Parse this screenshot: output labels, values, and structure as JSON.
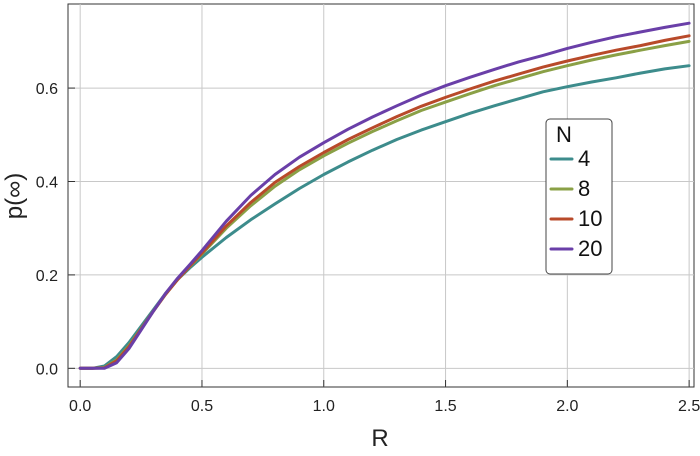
{
  "chart_data": {
    "type": "line",
    "xlabel": "R",
    "ylabel": "p(∞)",
    "xlim": [
      -0.05,
      2.52
    ],
    "ylim": [
      -0.04,
      0.78
    ],
    "xticks": [
      0.0,
      0.5,
      1.0,
      1.5,
      2.0,
      2.5
    ],
    "xtick_labels": [
      "0.0",
      "0.5",
      "1.0",
      "1.5",
      "2.0",
      "2.5"
    ],
    "yticks": [
      0.0,
      0.2,
      0.4,
      0.6
    ],
    "ytick_labels": [
      "0.0",
      "0.2",
      "0.4",
      "0.6"
    ],
    "grid": true,
    "legend": {
      "title": "N",
      "position": "right"
    },
    "x": [
      0.0,
      0.05,
      0.1,
      0.15,
      0.2,
      0.25,
      0.3,
      0.35,
      0.4,
      0.45,
      0.5,
      0.6,
      0.7,
      0.8,
      0.9,
      1.0,
      1.1,
      1.2,
      1.3,
      1.4,
      1.5,
      1.6,
      1.7,
      1.8,
      1.9,
      2.0,
      2.1,
      2.2,
      2.3,
      2.4,
      2.5
    ],
    "series": [
      {
        "name": "4",
        "color": "#3d8c8c",
        "values": [
          0.0,
          0.0,
          0.005,
          0.025,
          0.055,
          0.09,
          0.125,
          0.16,
          0.19,
          0.215,
          0.238,
          0.28,
          0.318,
          0.352,
          0.385,
          0.415,
          0.442,
          0.467,
          0.49,
          0.51,
          0.528,
          0.546,
          0.562,
          0.577,
          0.592,
          0.603,
          0.613,
          0.622,
          0.632,
          0.641,
          0.648
        ]
      },
      {
        "name": "8",
        "color": "#8aa046",
        "values": [
          0.0,
          0.0,
          0.002,
          0.018,
          0.048,
          0.085,
          0.122,
          0.158,
          0.19,
          0.218,
          0.245,
          0.3,
          0.348,
          0.39,
          0.425,
          0.455,
          0.482,
          0.507,
          0.53,
          0.552,
          0.57,
          0.588,
          0.605,
          0.62,
          0.635,
          0.648,
          0.66,
          0.671,
          0.681,
          0.691,
          0.7
        ]
      },
      {
        "name": "10",
        "color": "#b84a2a",
        "values": [
          0.0,
          0.0,
          0.001,
          0.016,
          0.046,
          0.084,
          0.122,
          0.158,
          0.19,
          0.219,
          0.247,
          0.305,
          0.355,
          0.398,
          0.432,
          0.462,
          0.49,
          0.515,
          0.539,
          0.561,
          0.58,
          0.598,
          0.615,
          0.63,
          0.645,
          0.658,
          0.67,
          0.681,
          0.691,
          0.702,
          0.712
        ]
      },
      {
        "name": "20",
        "color": "#6a3fa8",
        "values": [
          0.0,
          0.0,
          0.0,
          0.012,
          0.042,
          0.082,
          0.122,
          0.16,
          0.193,
          0.222,
          0.252,
          0.315,
          0.37,
          0.415,
          0.452,
          0.483,
          0.512,
          0.538,
          0.562,
          0.585,
          0.605,
          0.623,
          0.64,
          0.656,
          0.67,
          0.685,
          0.698,
          0.71,
          0.72,
          0.73,
          0.739
        ]
      }
    ]
  }
}
